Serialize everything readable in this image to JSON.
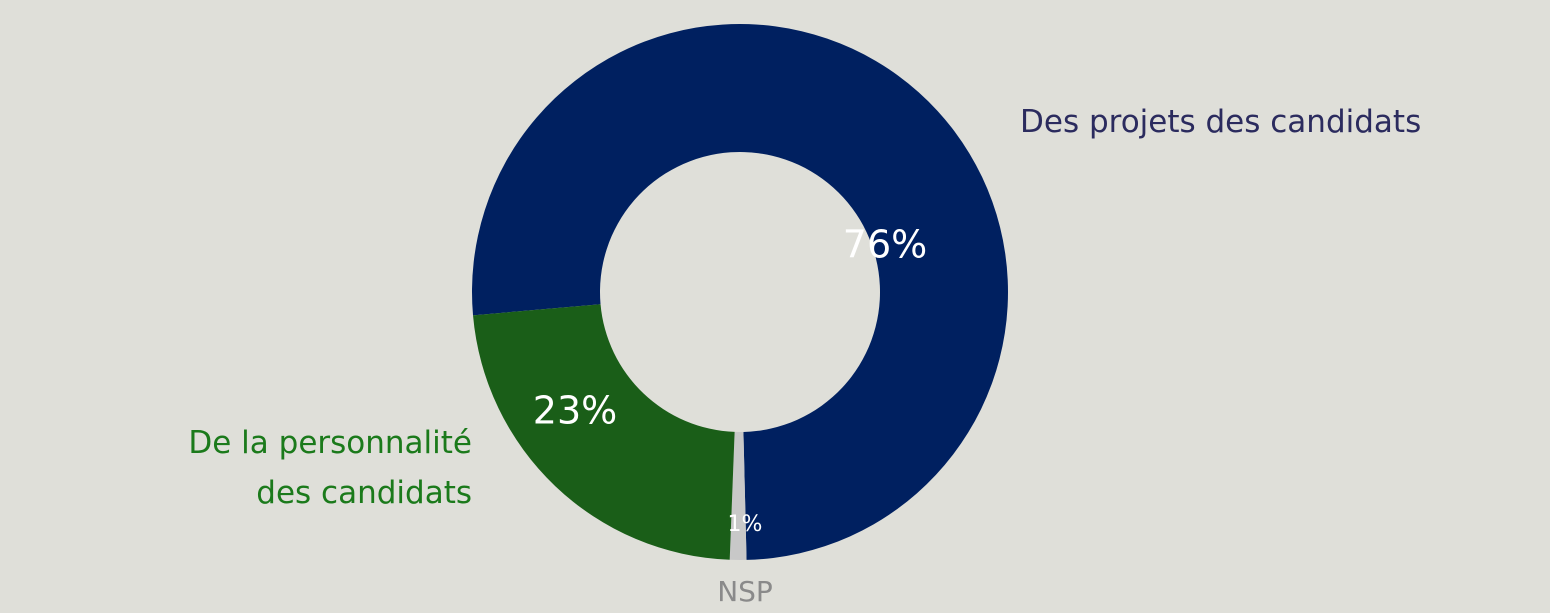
{
  "chart_data": {
    "type": "donut",
    "categories": [
      "Des projets des candidats",
      "NSP",
      "De la personnalité des candidats"
    ],
    "values": [
      76,
      1,
      23
    ],
    "value_labels": [
      "76%",
      "1%",
      "23%"
    ],
    "colors": [
      "#002060",
      "#c8c8c8",
      "#1a5e18"
    ]
  }
}
